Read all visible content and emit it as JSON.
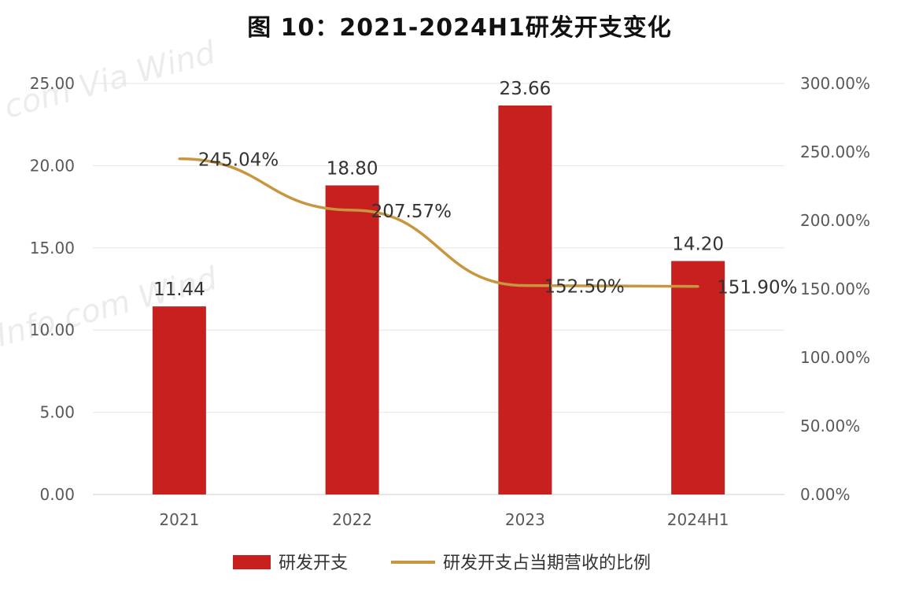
{
  "chart_data": {
    "type": "bar",
    "title": "图 10：2021-2024H1研发开支变化",
    "categories": [
      "2021",
      "2022",
      "2023",
      "2024H1"
    ],
    "series": [
      {
        "name": "研发开支",
        "type": "bar",
        "axis": "left",
        "values": [
          11.44,
          18.8,
          23.66,
          14.2
        ],
        "labels": [
          "11.44",
          "18.80",
          "23.66",
          "14.20"
        ],
        "color": "#C8201E"
      },
      {
        "name": "研发开支占当期营收的比例",
        "type": "line",
        "axis": "right",
        "values": [
          245.04,
          207.57,
          152.5,
          151.9
        ],
        "labels": [
          "245.04%",
          "207.57%",
          "152.50%",
          "151.90%"
        ],
        "color": "#C8963E"
      }
    ],
    "y_left": {
      "lim": [
        0,
        25
      ],
      "ticks": [
        "0.00",
        "5.00",
        "10.00",
        "15.00",
        "20.00",
        "25.00"
      ]
    },
    "y_right": {
      "lim": [
        0,
        300
      ],
      "ticks": [
        "0.00%",
        "50.00%",
        "100.00%",
        "150.00%",
        "200.00%",
        "250.00%",
        "300.00%"
      ]
    },
    "grid": true,
    "legend_position": "bottom",
    "watermark": "Wind"
  }
}
